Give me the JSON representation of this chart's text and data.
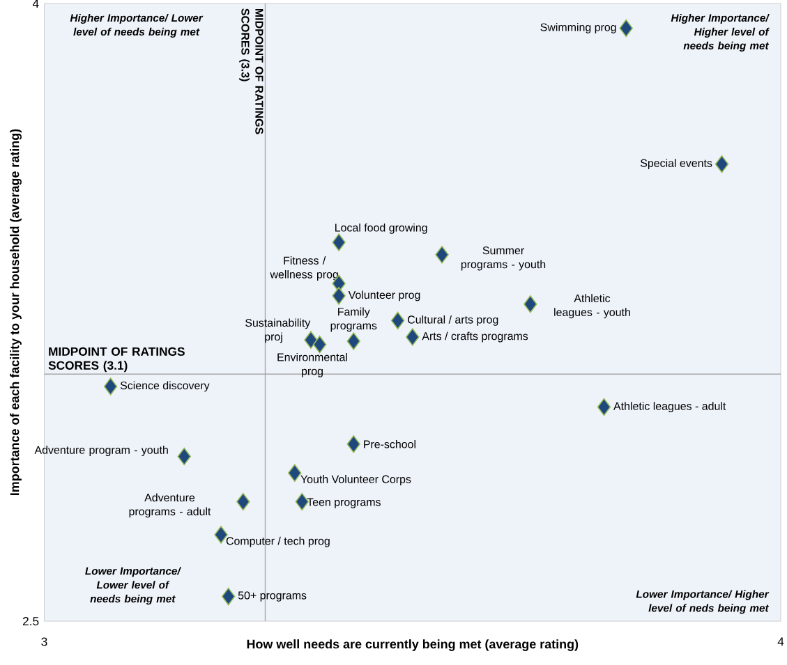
{
  "chart_data": {
    "type": "scatter",
    "xlabel": "How well needs are currently being met  (average rating)",
    "ylabel": "Importance of each facility to your household (average rating)",
    "xlim": [
      3,
      4
    ],
    "ylim": [
      2.5,
      4
    ],
    "xticks": [
      3,
      4
    ],
    "yticks": [
      2.5,
      4
    ],
    "marker": "diamond",
    "series": [
      {
        "color": "#1f497d",
        "x": [
          3.79,
          3.92,
          3.4,
          3.54,
          3.4,
          3.4,
          3.66,
          3.42,
          3.48,
          3.5,
          3.362,
          3.374,
          3.09,
          3.76,
          3.42,
          3.19,
          3.34,
          3.27,
          3.35,
          3.24,
          3.25
        ],
        "values": [
          3.94,
          3.61,
          3.42,
          3.39,
          3.32,
          3.29,
          3.27,
          3.18,
          3.23,
          3.19,
          3.183,
          3.172,
          3.07,
          3.02,
          2.93,
          2.9,
          2.86,
          2.79,
          2.79,
          2.71,
          2.56
        ]
      }
    ],
    "ref_lines": [
      {
        "axis": "x",
        "value": 3.3,
        "label": "MIDPOINT OF RATINGS SCORES (3.3)",
        "color": "#a6a6a6"
      },
      {
        "axis": "y",
        "value": 3.1,
        "label": "MIDPOINT OF RATINGS SCORES (3.1)",
        "color": "#a6a6a6"
      }
    ],
    "annotations": [
      {
        "text": "Swimming prog",
        "x": 3.79,
        "y": 3.94
      },
      {
        "text": "Special events",
        "x": 3.92,
        "y": 3.61
      },
      {
        "text": "Local food growing",
        "x": 3.4,
        "y": 3.42
      },
      {
        "text": "Summer programs - youth",
        "x": 3.54,
        "y": 3.39
      },
      {
        "text": "Fitness / wellness prog",
        "x": 3.4,
        "y": 3.32
      },
      {
        "text": "Volunteer prog",
        "x": 3.4,
        "y": 3.29
      },
      {
        "text": "Athletic leagues - youth",
        "x": 3.66,
        "y": 3.27
      },
      {
        "text": "Family programs",
        "x": 3.42,
        "y": 3.18
      },
      {
        "text": "Cultural / arts prog",
        "x": 3.48,
        "y": 3.23
      },
      {
        "text": "Arts / crafts programs",
        "x": 3.5,
        "y": 3.19
      },
      {
        "text": "Sustainability proj",
        "x": 3.362,
        "y": 3.183
      },
      {
        "text": "Environmental prog",
        "x": 3.374,
        "y": 3.172
      },
      {
        "text": "Science discovery",
        "x": 3.09,
        "y": 3.07
      },
      {
        "text": "Athletic leagues - adult",
        "x": 3.76,
        "y": 3.02
      },
      {
        "text": "Pre-school",
        "x": 3.42,
        "y": 2.93
      },
      {
        "text": "Adventure program - youth",
        "x": 3.19,
        "y": 2.9
      },
      {
        "text": "Youth Volunteer Corps",
        "x": 3.34,
        "y": 2.86
      },
      {
        "text": "Adventure programs - adult",
        "x": 3.27,
        "y": 2.79
      },
      {
        "text": "Teen programs",
        "x": 3.35,
        "y": 2.79
      },
      {
        "text": "Computer / tech prog",
        "x": 3.24,
        "y": 2.71
      },
      {
        "text": "50+ programs",
        "x": 3.25,
        "y": 2.56
      },
      "Higher Importance/ Lower level of needs being met",
      "Higher Importance/ Higher level of needs being met",
      "Lower Importance/ Lower level of needs being met",
      "Lower Importance/ Higher level of neds being met"
    ]
  }
}
